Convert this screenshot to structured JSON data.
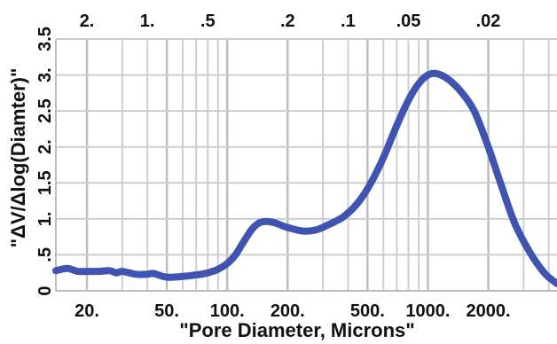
{
  "chart_data": {
    "type": "line",
    "xlabel": "\"Pore Diameter, Microns\"",
    "ylabel": "\"ΔV/Δlog(Diamter)\"",
    "x_scale": "log",
    "xlim": [
      14,
      4400
    ],
    "ylim": [
      0,
      3.5
    ],
    "grid": true,
    "legend": "none",
    "line_color": "#3f54b0",
    "x_ticks": [
      {
        "label": "20.",
        "value": 20
      },
      {
        "label": "50.",
        "value": 50
      },
      {
        "label": "100.",
        "value": 100
      },
      {
        "label": "200.",
        "value": 200
      },
      {
        "label": "500.",
        "value": 500
      },
      {
        "label": "1000.",
        "value": 1000
      },
      {
        "label": "2000.",
        "value": 2000
      }
    ],
    "x_minor_grid": [
      30,
      40,
      60,
      70,
      80,
      90,
      300,
      400,
      600,
      700,
      800,
      900,
      3000,
      4000
    ],
    "top_ticks": [
      {
        "label": "2.",
        "value": 20
      },
      {
        "label": "1.",
        "value": 40
      },
      {
        "label": ".5",
        "value": 80
      },
      {
        "label": ".2",
        "value": 200
      },
      {
        "label": ".1",
        "value": 400
      },
      {
        "label": ".05",
        "value": 800
      },
      {
        "label": ".02",
        "value": 2000
      }
    ],
    "y_ticks": [
      {
        "label": "0",
        "value": 0
      },
      {
        "label": ".5",
        "value": 0.5
      },
      {
        "label": "1.",
        "value": 1
      },
      {
        "label": "1.5",
        "value": 1.5
      },
      {
        "label": "2.",
        "value": 2
      },
      {
        "label": "2.5",
        "value": 2.5
      },
      {
        "label": "3.",
        "value": 3
      },
      {
        "label": "3.5",
        "value": 3.5
      }
    ],
    "series": [
      {
        "x": [
          14,
          16,
          18,
          20,
          23,
          26,
          28,
          30,
          35,
          40,
          43,
          50,
          60,
          70,
          80,
          90,
          100,
          110,
          120,
          135,
          150,
          170,
          200,
          240,
          280,
          320,
          380,
          450,
          520,
          600,
          700,
          800,
          900,
          1000,
          1100,
          1250,
          1450,
          1700,
          2000,
          2300,
          2700,
          3200,
          3800,
          4400
        ],
        "y": [
          0.28,
          0.31,
          0.27,
          0.27,
          0.27,
          0.28,
          0.25,
          0.27,
          0.23,
          0.23,
          0.24,
          0.19,
          0.2,
          0.22,
          0.25,
          0.3,
          0.38,
          0.5,
          0.67,
          0.88,
          0.96,
          0.95,
          0.88,
          0.83,
          0.85,
          0.92,
          1.03,
          1.23,
          1.5,
          1.85,
          2.3,
          2.65,
          2.88,
          3.0,
          3.02,
          2.95,
          2.78,
          2.5,
          2.0,
          1.5,
          0.95,
          0.55,
          0.25,
          0.1
        ]
      }
    ]
  }
}
